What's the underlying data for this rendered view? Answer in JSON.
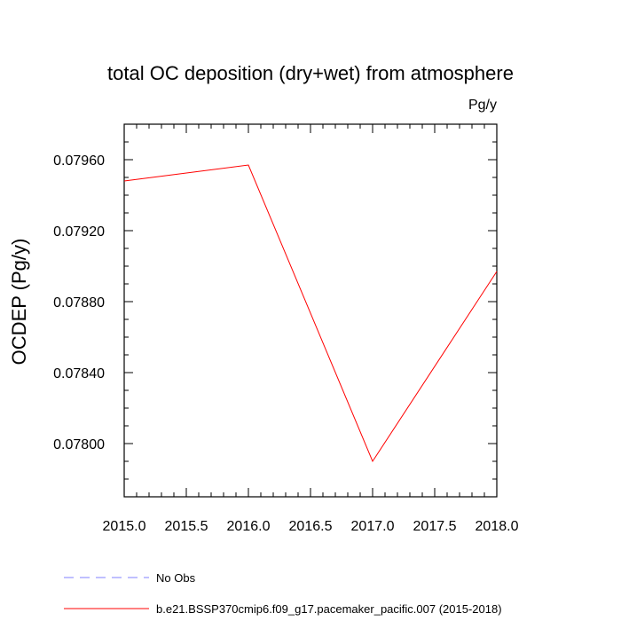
{
  "chart_data": {
    "type": "line",
    "title": "total OC deposition (dry+wet) from atmosphere",
    "units": "Pg/y",
    "xlabel": "",
    "ylabel": "OCDEP  (Pg/y)",
    "xlim": [
      2015.0,
      2018.0
    ],
    "ylim": [
      0.0777,
      0.0798
    ],
    "x_ticks": [
      2015.0,
      2015.5,
      2016.0,
      2016.5,
      2017.0,
      2017.5,
      2018.0
    ],
    "x_tick_labels": [
      "2015.0",
      "2015.5",
      "2016.0",
      "2016.5",
      "2017.0",
      "2017.5",
      "2018.0"
    ],
    "y_ticks": [
      0.078,
      0.0784,
      0.0788,
      0.0792,
      0.0796
    ],
    "y_tick_labels": [
      "0.07800",
      "0.07840",
      "0.07880",
      "0.07920",
      "0.07960"
    ],
    "series": [
      {
        "name": "b.e21.BSSP370cmip6.f09_g17.pacemaker_pacific.007 (2015-2018)",
        "color": "#ff0000",
        "dash": "solid",
        "x": [
          2015,
          2016,
          2017,
          2018
        ],
        "values": [
          0.07948,
          0.07957,
          0.0779,
          0.07897
        ]
      }
    ],
    "legend": [
      {
        "label": "No Obs",
        "color": "#8080ff",
        "dash": "dashed"
      },
      {
        "label": "b.e21.BSSP370cmip6.f09_g17.pacemaker_pacific.007 (2015-2018)",
        "color": "#ff0000",
        "dash": "solid"
      }
    ],
    "legend_position": "bottom-left"
  }
}
